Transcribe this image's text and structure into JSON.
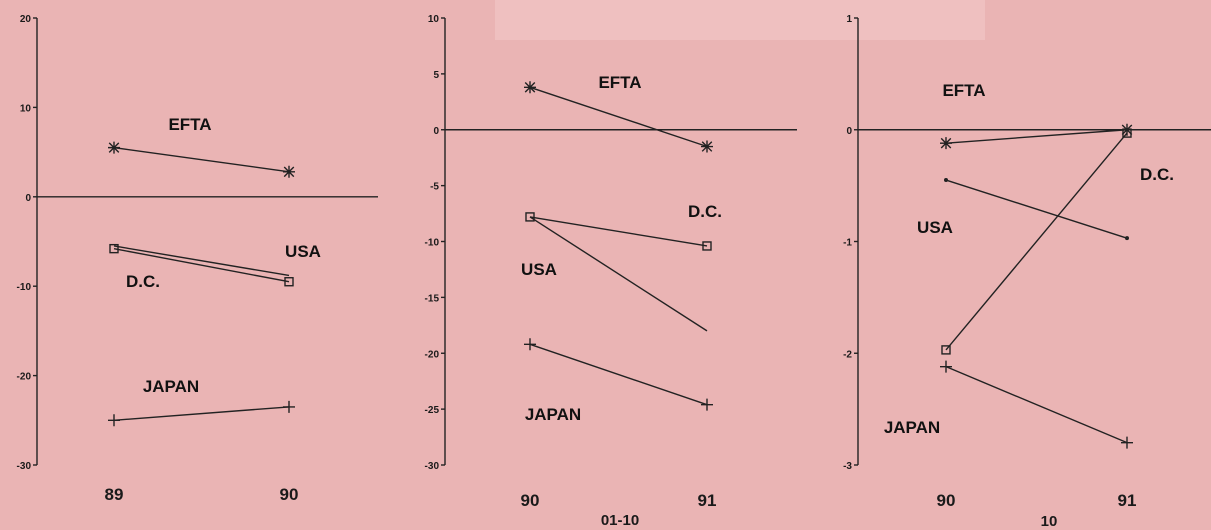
{
  "chart_data": [
    {
      "type": "line",
      "ylim": [
        -30,
        20
      ],
      "yticks": [
        -30,
        -20,
        -10,
        0,
        10,
        20
      ],
      "x_labels": [
        "89",
        "90"
      ],
      "zero_line": true,
      "series": [
        {
          "name": "EFTA",
          "marker": "star",
          "values": [
            5.5,
            2.8
          ]
        },
        {
          "name": "USA",
          "marker": "none",
          "values": [
            -5.5,
            -8.8
          ]
        },
        {
          "name": "D.C.",
          "marker": "square",
          "values": [
            -5.8,
            -9.5
          ]
        },
        {
          "name": "JAPAN",
          "marker": "plus",
          "values": [
            -25.0,
            -23.5
          ]
        }
      ],
      "annotations": []
    },
    {
      "type": "line",
      "ylim": [
        -30,
        10
      ],
      "yticks": [
        -30,
        -25,
        -20,
        -15,
        -10,
        -5,
        0,
        5,
        10
      ],
      "x_labels": [
        "90",
        "91"
      ],
      "zero_line": true,
      "series": [
        {
          "name": "EFTA",
          "marker": "star",
          "values": [
            3.8,
            -1.5
          ]
        },
        {
          "name": "D.C.",
          "marker": "square",
          "values": [
            -7.8,
            -10.4
          ]
        },
        {
          "name": "USA",
          "marker": "none",
          "values": [
            -7.8,
            -18.0
          ]
        },
        {
          "name": "JAPAN",
          "marker": "plus",
          "values": [
            -19.2,
            -24.6
          ]
        }
      ],
      "annotations": [
        "01-10"
      ]
    },
    {
      "type": "line",
      "ylim": [
        -3,
        1
      ],
      "yticks": [
        -3,
        -2,
        -1,
        0,
        1
      ],
      "x_labels": [
        "90",
        "91"
      ],
      "zero_line": true,
      "series": [
        {
          "name": "EFTA",
          "marker": "star",
          "values": [
            -0.12,
            0.0
          ]
        },
        {
          "name": "USA",
          "marker": "dot",
          "values": [
            -0.45,
            -0.97
          ]
        },
        {
          "name": "D.C.",
          "marker": "square",
          "values": [
            -1.97,
            -0.03
          ]
        },
        {
          "name": "JAPAN",
          "marker": "plus",
          "values": [
            -2.12,
            -2.8
          ]
        }
      ],
      "annotations": [
        "10"
      ]
    }
  ]
}
